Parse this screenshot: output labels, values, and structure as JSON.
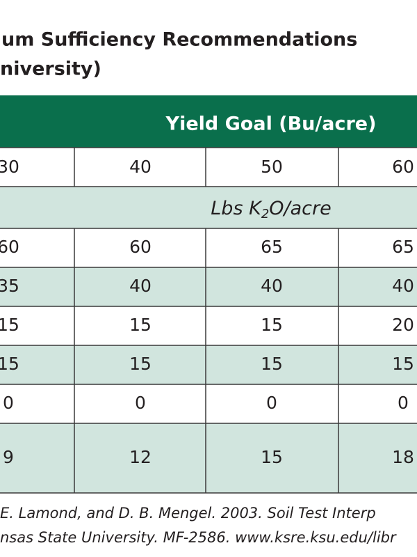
{
  "title": {
    "line1": "um Sufficiency Recommendations",
    "line2": "niversity)"
  },
  "table": {
    "group_header": "Yield Goal (Bu/acre)",
    "columns": [
      "30",
      "40",
      "50",
      "60"
    ],
    "unit": {
      "text": "Lbs K",
      "sub": "2",
      "tail": "O/acre"
    },
    "rows": [
      [
        "60",
        "60",
        "65",
        "65"
      ],
      [
        "35",
        "40",
        "40",
        "40"
      ],
      [
        "15",
        "15",
        "15",
        "20"
      ],
      [
        "15",
        "15",
        "15",
        "15"
      ],
      [
        "0",
        "0",
        "0",
        "0"
      ],
      [
        "9",
        "12",
        "15",
        "18"
      ]
    ]
  },
  "source": {
    "line1": "E. Lamond, and D. B. Mengel. 2003. Soil Test Interp",
    "line2": "nsas State University. MF-2586. www.ksre.ksu.edu/libr"
  }
}
